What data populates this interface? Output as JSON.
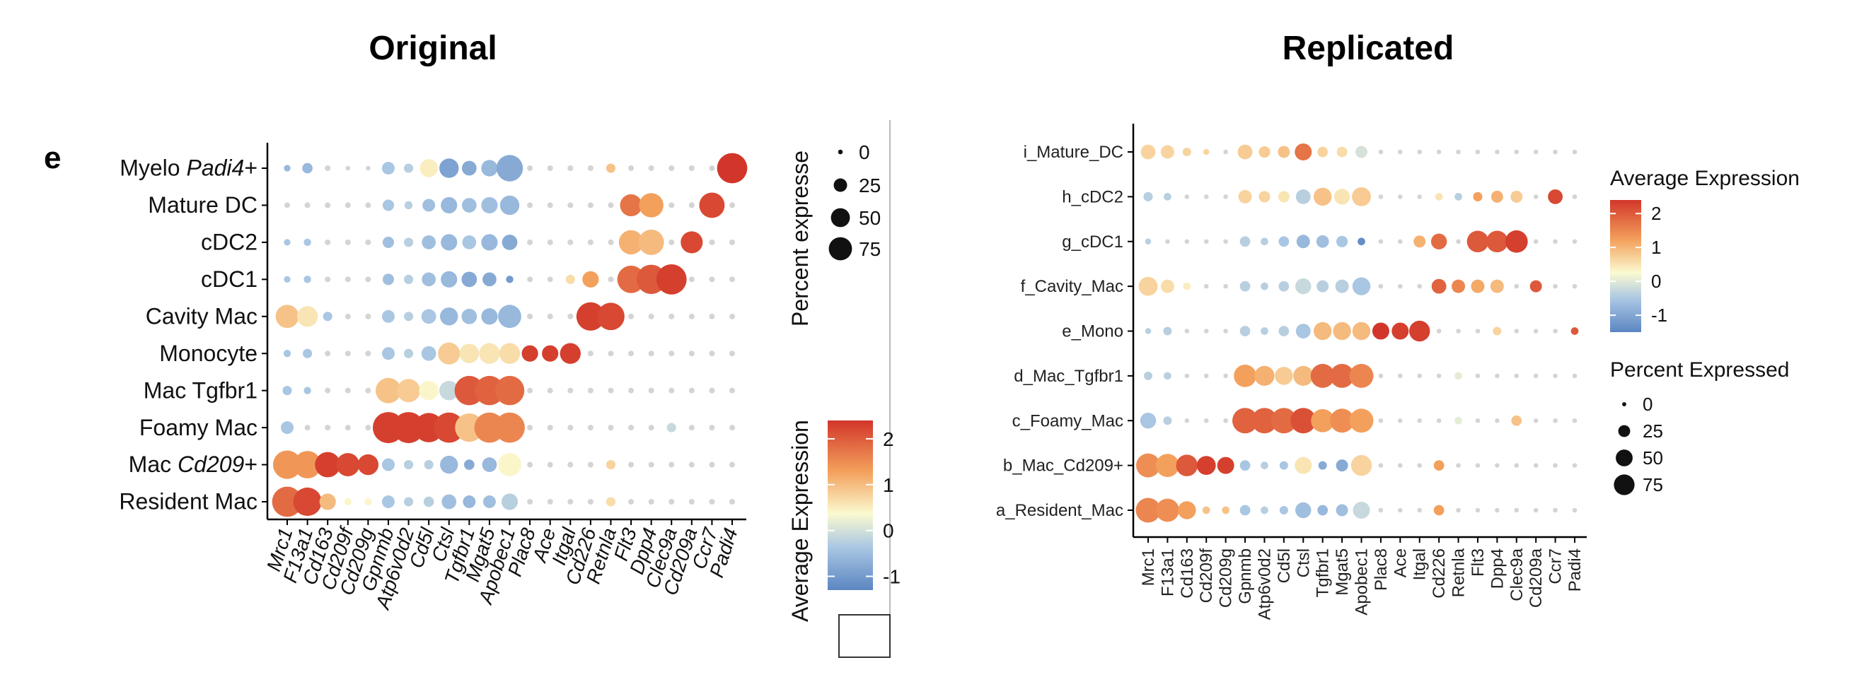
{
  "titles": {
    "left": "Original",
    "right": "Replicated"
  },
  "panel_letter": "e",
  "colors": {
    "low": "#5b86c2",
    "mid": "#fbfad0",
    "high": "#d2362a",
    "axis": "#000000"
  },
  "chart_data": [
    {
      "type": "dotplot",
      "title": "Original",
      "rows": [
        "Myelo Padi4+",
        "Mature DC",
        "cDC2",
        "cDC1",
        "Cavity Mac",
        "Monocyte",
        "Mac Tgfbr1",
        "Foamy Mac",
        "Mac Cd209+",
        "Resident Mac"
      ],
      "row_parts": [
        [
          {
            "t": "Myelo ",
            "i": false
          },
          {
            "t": "Padi4",
            "i": true
          },
          {
            "t": "+",
            "i": false
          }
        ],
        [
          {
            "t": "Mature DC",
            "i": false
          }
        ],
        [
          {
            "t": "cDC2",
            "i": false
          }
        ],
        [
          {
            "t": "cDC1",
            "i": false
          }
        ],
        [
          {
            "t": "Cavity Mac",
            "i": false
          }
        ],
        [
          {
            "t": "Monocyte",
            "i": false
          }
        ],
        [
          {
            "t": "Mac Tgfbr1",
            "i": false
          }
        ],
        [
          {
            "t": "Foamy Mac",
            "i": false
          }
        ],
        [
          {
            "t": "Mac ",
            "i": false
          },
          {
            "t": "Cd209",
            "i": true
          },
          {
            "t": "+",
            "i": false
          }
        ],
        [
          {
            "t": "Resident Mac",
            "i": false
          }
        ]
      ],
      "genes": [
        "Mrc1",
        "F13a1",
        "Cd163",
        "Cd209f",
        "Cd209g",
        "Gpnmb",
        "Atp6v0d2",
        "Cd5l",
        "Ctsl",
        "Tgfbr1",
        "Mgat5",
        "Apobec1",
        "Plac8",
        "Ace",
        "Itgal",
        "Cd226",
        "Retnla",
        "Flt3",
        "Dpp4",
        "Clec9a",
        "Cd209a",
        "Ccr7",
        "Padi4"
      ],
      "size_legend": {
        "title": "Percent expresse",
        "values": [
          0,
          25,
          50,
          75
        ]
      },
      "color_legend": {
        "title": "Average Expression",
        "ticks": [
          2,
          1,
          0,
          -1
        ],
        "range": [
          -1.3,
          2.4
        ]
      },
      "percent": [
        [
          4,
          10,
          3,
          2,
          2,
          15,
          8,
          30,
          35,
          20,
          25,
          65,
          3,
          3,
          3,
          3,
          8,
          3,
          3,
          3,
          3,
          3,
          85
        ],
        [
          3,
          3,
          3,
          3,
          3,
          12,
          6,
          15,
          25,
          20,
          25,
          35,
          3,
          3,
          3,
          3,
          3,
          45,
          55,
          3,
          3,
          60,
          3
        ],
        [
          4,
          5,
          3,
          3,
          3,
          12,
          8,
          18,
          25,
          18,
          25,
          22,
          3,
          3,
          3,
          3,
          3,
          55,
          60,
          3,
          45,
          3,
          3
        ],
        [
          4,
          5,
          3,
          3,
          3,
          12,
          8,
          18,
          25,
          22,
          18,
          5,
          3,
          3,
          8,
          25,
          3,
          70,
          80,
          85,
          3,
          3,
          3
        ],
        [
          50,
          40,
          8,
          3,
          3,
          15,
          8,
          20,
          30,
          22,
          25,
          50,
          3,
          3,
          3,
          75,
          70,
          3,
          3,
          3,
          3,
          3,
          3
        ],
        [
          5,
          8,
          3,
          3,
          3,
          15,
          8,
          20,
          45,
          35,
          40,
          40,
          25,
          25,
          40,
          3,
          3,
          3,
          3,
          3,
          3,
          3,
          3
        ],
        [
          8,
          5,
          3,
          3,
          3,
          60,
          50,
          35,
          35,
          80,
          80,
          80,
          3,
          3,
          3,
          3,
          3,
          3,
          3,
          3,
          3,
          3,
          3
        ],
        [
          15,
          3,
          3,
          3,
          3,
          90,
          90,
          80,
          85,
          75,
          85,
          85,
          3,
          3,
          3,
          3,
          3,
          3,
          3,
          8,
          3,
          3,
          3
        ],
        [
          75,
          70,
          60,
          50,
          40,
          15,
          8,
          8,
          30,
          10,
          20,
          50,
          3,
          3,
          3,
          3,
          8,
          3,
          3,
          3,
          3,
          3,
          3
        ],
        [
          85,
          75,
          25,
          5,
          5,
          15,
          8,
          10,
          20,
          15,
          15,
          25,
          3,
          3,
          3,
          3,
          8,
          3,
          3,
          3,
          3,
          3,
          3
        ]
      ],
      "avg_expression": [
        [
          -0.6,
          -0.6,
          0,
          0,
          0,
          -0.4,
          -0.3,
          0.3,
          -0.9,
          -0.8,
          -0.6,
          -0.8,
          0,
          0,
          0,
          0,
          0.8,
          0,
          0,
          0,
          0,
          0,
          2.4
        ],
        [
          0,
          0,
          0,
          0,
          0,
          -0.4,
          -0.3,
          -0.5,
          -0.6,
          -0.5,
          -0.5,
          -0.6,
          0,
          0,
          0,
          0,
          0,
          1.7,
          1.2,
          0,
          0,
          2.2,
          0
        ],
        [
          -0.4,
          -0.4,
          0,
          0,
          0,
          -0.5,
          -0.3,
          -0.5,
          -0.6,
          -0.4,
          -0.6,
          -0.8,
          0,
          0,
          0,
          0,
          0,
          1.0,
          0.9,
          0,
          2.2,
          0,
          0
        ],
        [
          -0.4,
          -0.4,
          0,
          0,
          0,
          -0.5,
          -0.3,
          -0.5,
          -0.6,
          -0.8,
          -0.8,
          -1.0,
          0,
          0,
          0.5,
          1.2,
          0,
          1.8,
          2.0,
          2.3,
          0,
          0,
          0
        ],
        [
          0.8,
          0.4,
          -0.4,
          0,
          0,
          -0.4,
          -0.3,
          -0.4,
          -0.6,
          -0.5,
          -0.6,
          -0.6,
          0,
          0,
          0,
          2.3,
          2.2,
          0,
          0,
          0,
          0,
          0,
          0
        ],
        [
          -0.4,
          -0.4,
          0,
          0,
          0,
          -0.4,
          -0.3,
          -0.4,
          0.7,
          0.4,
          0.4,
          0.5,
          2.3,
          2.3,
          2.3,
          0,
          0,
          0,
          0,
          0,
          0,
          0,
          0
        ],
        [
          -0.4,
          -0.4,
          0,
          0,
          0,
          0.8,
          0.7,
          0.2,
          -0.2,
          2.0,
          1.9,
          1.8,
          0,
          0,
          0,
          0,
          0,
          0,
          0,
          0,
          0,
          0,
          0
        ],
        [
          -0.4,
          0,
          0,
          0,
          0,
          2.3,
          2.3,
          2.3,
          2.2,
          0.8,
          1.5,
          1.5,
          0,
          0,
          0,
          0,
          0,
          0,
          0,
          -0.2,
          0,
          0,
          0
        ],
        [
          1.3,
          1.3,
          2.3,
          2.2,
          2.2,
          -0.4,
          -0.3,
          -0.3,
          -0.6,
          -0.8,
          -0.6,
          0.2,
          0,
          0,
          0,
          0,
          0.6,
          0,
          0,
          0,
          0,
          0,
          0
        ],
        [
          1.8,
          2.2,
          0.9,
          0.2,
          0.2,
          -0.4,
          -0.3,
          -0.3,
          -0.5,
          -0.6,
          -0.5,
          -0.3,
          0,
          0,
          0,
          0,
          0.5,
          0,
          0,
          0,
          0,
          0,
          0
        ]
      ]
    },
    {
      "type": "dotplot",
      "title": "Replicated",
      "rows": [
        "i_Mature_DC",
        "h_cDC2",
        "g_cDC1",
        "f_Cavity_Mac",
        "e_Mono",
        "d_Mac_Tgfbr1",
        "c_Foamy_Mac",
        "b_Mac_Cd209+",
        "a_Resident_Mac"
      ],
      "genes": [
        "Mrc1",
        "F13a1",
        "Cd163",
        "Cd209f",
        "Cd209g",
        "Gpnmb",
        "Atp6v0d2",
        "Cd5l",
        "Ctsl",
        "Tgfbr1",
        "Mgat5",
        "Apobec1",
        "Plac8",
        "Ace",
        "Itgal",
        "Cd226",
        "Retnla",
        "Flt3",
        "Dpp4",
        "Clec9a",
        "Cd209a",
        "Ccr7",
        "Padi4"
      ],
      "color_legend": {
        "title": "Average Expression",
        "ticks": [
          2,
          1,
          0,
          -1
        ],
        "range": [
          -1.5,
          2.4
        ]
      },
      "size_legend": {
        "title": "Percent Expressed",
        "values": [
          0,
          25,
          50,
          75
        ]
      },
      "percent": [
        [
          30,
          25,
          10,
          5,
          3,
          30,
          18,
          20,
          40,
          15,
          15,
          20,
          3,
          3,
          3,
          3,
          3,
          3,
          3,
          3,
          3,
          3,
          3
        ],
        [
          12,
          8,
          3,
          3,
          3,
          25,
          18,
          18,
          30,
          45,
          35,
          50,
          3,
          3,
          3,
          8,
          8,
          12,
          20,
          20,
          3,
          30,
          3
        ],
        [
          5,
          3,
          3,
          3,
          3,
          15,
          8,
          15,
          25,
          22,
          18,
          8,
          3,
          3,
          20,
          35,
          3,
          65,
          65,
          70,
          3,
          3,
          3
        ],
        [
          50,
          25,
          8,
          3,
          3,
          15,
          8,
          15,
          35,
          20,
          25,
          45,
          3,
          3,
          3,
          30,
          25,
          25,
          25,
          3,
          20,
          3,
          3
        ],
        [
          5,
          10,
          3,
          3,
          3,
          15,
          8,
          15,
          30,
          45,
          45,
          45,
          40,
          40,
          60,
          3,
          3,
          3,
          10,
          3,
          3,
          3,
          8
        ],
        [
          10,
          8,
          3,
          3,
          3,
          70,
          55,
          45,
          55,
          80,
          80,
          80,
          3,
          3,
          3,
          3,
          8,
          3,
          3,
          3,
          3,
          3,
          3
        ],
        [
          35,
          10,
          3,
          3,
          3,
          90,
          90,
          90,
          90,
          75,
          80,
          80,
          3,
          3,
          3,
          3,
          8,
          3,
          3,
          15,
          3,
          3,
          3
        ],
        [
          80,
          75,
          65,
          50,
          40,
          15,
          8,
          10,
          40,
          10,
          20,
          60,
          3,
          3,
          3,
          15,
          3,
          3,
          3,
          3,
          3,
          3,
          3
        ],
        [
          85,
          75,
          45,
          8,
          8,
          15,
          8,
          10,
          35,
          15,
          20,
          40,
          3,
          3,
          3,
          15,
          3,
          3,
          3,
          3,
          3,
          3,
          3
        ]
      ],
      "avg_expression": [
        [
          0.6,
          0.6,
          0.6,
          0.6,
          0.6,
          0.7,
          0.7,
          0.8,
          1.7,
          0.6,
          0.5,
          -0.1,
          0,
          0,
          0,
          0,
          0,
          0,
          0,
          0,
          0,
          0,
          0
        ],
        [
          -0.3,
          -0.3,
          0,
          0,
          0,
          0.6,
          0.6,
          0.4,
          -0.3,
          0.8,
          0.4,
          0.7,
          0,
          0,
          0.4,
          0.4,
          -0.3,
          1.2,
          1.0,
          0.7,
          0,
          2.2,
          0
        ],
        [
          -0.3,
          -0.3,
          0,
          0,
          0,
          -0.3,
          -0.3,
          -0.4,
          -0.6,
          -0.5,
          -0.4,
          -1.2,
          0,
          0,
          1.0,
          1.8,
          0,
          2.0,
          2.0,
          2.3,
          0,
          0,
          0
        ],
        [
          0.6,
          0.5,
          0.3,
          0,
          0,
          -0.3,
          -0.3,
          -0.3,
          -0.2,
          -0.3,
          -0.3,
          -0.4,
          0,
          0,
          0,
          1.9,
          1.5,
          1.1,
          0.9,
          0,
          2.0,
          0,
          0
        ],
        [
          -0.3,
          -0.3,
          0,
          0,
          0,
          -0.3,
          -0.3,
          -0.3,
          -0.4,
          0.9,
          0.9,
          0.9,
          2.4,
          2.3,
          2.3,
          0,
          0,
          0,
          0.6,
          0,
          0,
          0,
          2.0
        ],
        [
          -0.3,
          -0.3,
          0,
          0,
          0,
          1.2,
          1.0,
          0.7,
          0.9,
          1.8,
          1.8,
          1.5,
          0,
          0,
          0,
          0,
          0,
          0,
          0,
          0,
          0,
          0,
          0
        ],
        [
          -0.4,
          -0.3,
          0,
          0,
          0,
          1.9,
          1.9,
          1.8,
          2.1,
          1.2,
          1.4,
          1.2,
          0,
          0,
          0,
          0,
          0,
          0,
          0,
          0.8,
          0,
          0,
          0
        ],
        [
          1.4,
          1.2,
          2.0,
          2.3,
          2.3,
          -0.4,
          -0.3,
          -0.4,
          0.4,
          -0.8,
          -0.8,
          0.6,
          0,
          0,
          0,
          1.2,
          0,
          0,
          0,
          0,
          0,
          0,
          0
        ],
        [
          1.5,
          1.4,
          1.2,
          0.8,
          0.8,
          -0.4,
          -0.3,
          -0.4,
          -0.5,
          -0.6,
          -0.5,
          -0.2,
          0,
          0,
          0,
          1.2,
          0,
          0,
          0,
          0,
          0,
          0,
          0
        ]
      ]
    }
  ]
}
